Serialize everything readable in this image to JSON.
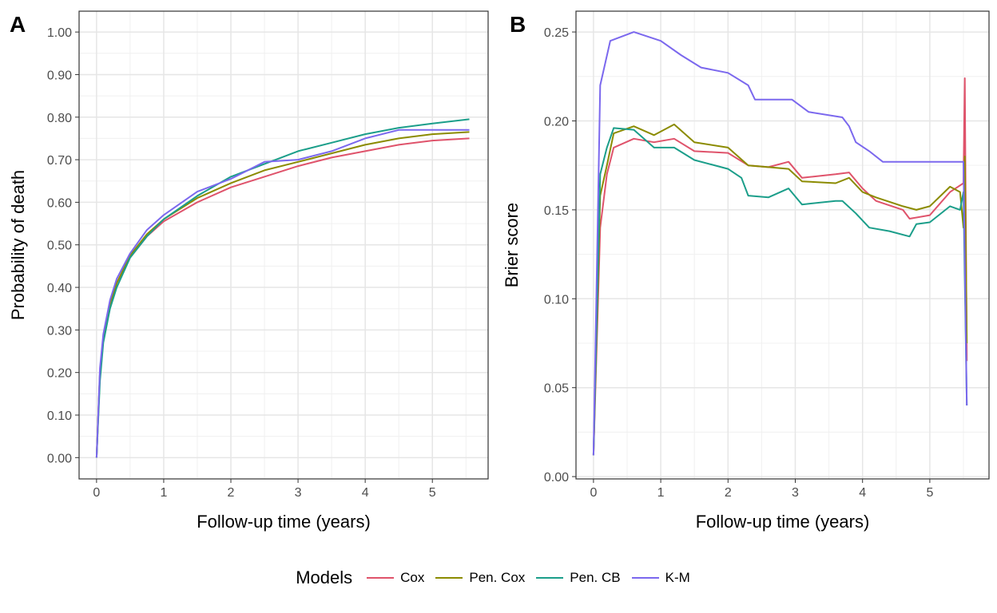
{
  "chart_data": [
    {
      "type": "line",
      "panel_label": "A",
      "xlabel": "Follow-up time (years)",
      "ylabel": "Probability of death",
      "xlim": [
        -0.26,
        5.83
      ],
      "ylim": [
        -0.05,
        1.049
      ],
      "grid": true,
      "xticks": [
        0,
        1,
        2,
        3,
        4,
        5
      ],
      "xtick_labels": [
        "0",
        "1",
        "2",
        "3",
        "4",
        "5"
      ],
      "yticks": [
        0,
        0.1,
        0.2,
        0.3,
        0.4,
        0.5,
        0.6,
        0.7,
        0.8,
        0.9,
        1.0
      ],
      "ytick_labels": [
        "0.00",
        "0.10",
        "0.20",
        "0.30",
        "0.40",
        "0.50",
        "0.60",
        "0.70",
        "0.80",
        "0.90",
        "1.00"
      ],
      "x": [
        0,
        0.05,
        0.1,
        0.2,
        0.3,
        0.5,
        0.75,
        1,
        1.5,
        2,
        2.5,
        3,
        3.5,
        4,
        4.5,
        5,
        5.55
      ],
      "series": [
        {
          "name": "Cox",
          "values": [
            0,
            0.2,
            0.28,
            0.36,
            0.41,
            0.47,
            0.52,
            0.555,
            0.6,
            0.635,
            0.66,
            0.685,
            0.705,
            0.72,
            0.735,
            0.745,
            0.75
          ]
        },
        {
          "name": "Pen. Cox",
          "values": [
            0,
            0.2,
            0.28,
            0.36,
            0.41,
            0.475,
            0.525,
            0.56,
            0.61,
            0.645,
            0.675,
            0.695,
            0.715,
            0.735,
            0.75,
            0.76,
            0.765
          ]
        },
        {
          "name": "Pen. CB",
          "values": [
            0,
            0.18,
            0.27,
            0.35,
            0.4,
            0.47,
            0.52,
            0.56,
            0.615,
            0.66,
            0.69,
            0.72,
            0.74,
            0.76,
            0.775,
            0.785,
            0.795
          ]
        },
        {
          "name": "K-M",
          "values": [
            0,
            0.21,
            0.29,
            0.37,
            0.42,
            0.48,
            0.535,
            0.57,
            0.625,
            0.655,
            0.695,
            0.7,
            0.72,
            0.75,
            0.77,
            0.77,
            0.77
          ]
        }
      ]
    },
    {
      "type": "line",
      "panel_label": "B",
      "xlabel": "Follow-up time (years)",
      "ylabel": "Brier score",
      "xlim": [
        -0.26,
        5.88
      ],
      "ylim": [
        -0.0013,
        0.2617
      ],
      "grid": true,
      "xticks": [
        0,
        1,
        2,
        3,
        4,
        5
      ],
      "xtick_labels": [
        "0",
        "1",
        "2",
        "3",
        "4",
        "5"
      ],
      "yticks": [
        0,
        0.05,
        0.1,
        0.15,
        0.2,
        0.25
      ],
      "ytick_labels": [
        "0.00",
        "0.05",
        "0.10",
        "0.15",
        "0.20",
        "0.25"
      ],
      "series": [
        {
          "name": "Cox",
          "x": [
            0,
            0.1,
            0.2,
            0.3,
            0.6,
            0.9,
            1.2,
            1.5,
            2,
            2.3,
            2.6,
            2.9,
            3.1,
            3.6,
            3.8,
            4,
            4.2,
            4.6,
            4.7,
            5,
            5.3,
            5.5,
            5.52,
            5.55
          ],
          "values": [
            0.012,
            0.14,
            0.17,
            0.185,
            0.19,
            0.188,
            0.19,
            0.183,
            0.182,
            0.175,
            0.174,
            0.177,
            0.168,
            0.17,
            0.171,
            0.162,
            0.155,
            0.15,
            0.145,
            0.147,
            0.16,
            0.165,
            0.224,
            0.065
          ]
        },
        {
          "name": "Pen. Cox",
          "x": [
            0,
            0.1,
            0.2,
            0.3,
            0.6,
            0.9,
            1.2,
            1.5,
            2,
            2.3,
            2.6,
            2.9,
            3.1,
            3.6,
            3.8,
            4,
            4.2,
            4.6,
            4.8,
            5,
            5.3,
            5.45,
            5.5,
            5.52,
            5.55
          ],
          "values": [
            0.012,
            0.158,
            0.175,
            0.193,
            0.197,
            0.192,
            0.198,
            0.188,
            0.185,
            0.175,
            0.174,
            0.173,
            0.166,
            0.165,
            0.168,
            0.16,
            0.157,
            0.152,
            0.15,
            0.152,
            0.163,
            0.16,
            0.14,
            0.18,
            0.075
          ]
        },
        {
          "name": "Pen. CB",
          "x": [
            0,
            0.1,
            0.2,
            0.3,
            0.6,
            0.9,
            1.2,
            1.5,
            2,
            2.2,
            2.3,
            2.6,
            2.9,
            3.1,
            3.6,
            3.7,
            3.9,
            4.1,
            4.4,
            4.7,
            4.8,
            5,
            5.3,
            5.45,
            5.5,
            5.55
          ],
          "values": [
            0.012,
            0.17,
            0.185,
            0.196,
            0.195,
            0.185,
            0.185,
            0.178,
            0.173,
            0.168,
            0.158,
            0.157,
            0.162,
            0.153,
            0.155,
            0.155,
            0.148,
            0.14,
            0.138,
            0.135,
            0.142,
            0.143,
            0.152,
            0.15,
            0.16,
            0.04
          ]
        },
        {
          "name": "K-M",
          "x": [
            0,
            0.1,
            0.25,
            0.6,
            1,
            1.3,
            1.6,
            2,
            2.3,
            2.4,
            2.95,
            3.2,
            3.7,
            3.8,
            3.9,
            4.1,
            4.3,
            5.5,
            5.55
          ],
          "values": [
            0.012,
            0.22,
            0.245,
            0.25,
            0.245,
            0.237,
            0.23,
            0.227,
            0.22,
            0.212,
            0.212,
            0.205,
            0.202,
            0.197,
            0.188,
            0.183,
            0.177,
            0.177,
            0.04
          ]
        }
      ]
    }
  ],
  "legend": {
    "title": "Models",
    "placement": "bottom",
    "items": [
      "Cox",
      "Pen. Cox",
      "Pen. CB",
      "K-M"
    ]
  },
  "colors": {
    "Cox": "#DF536B",
    "Pen. Cox": "#8B8B00",
    "Pen. CB": "#1B9E8A",
    "K-M": "#7B68EE"
  }
}
